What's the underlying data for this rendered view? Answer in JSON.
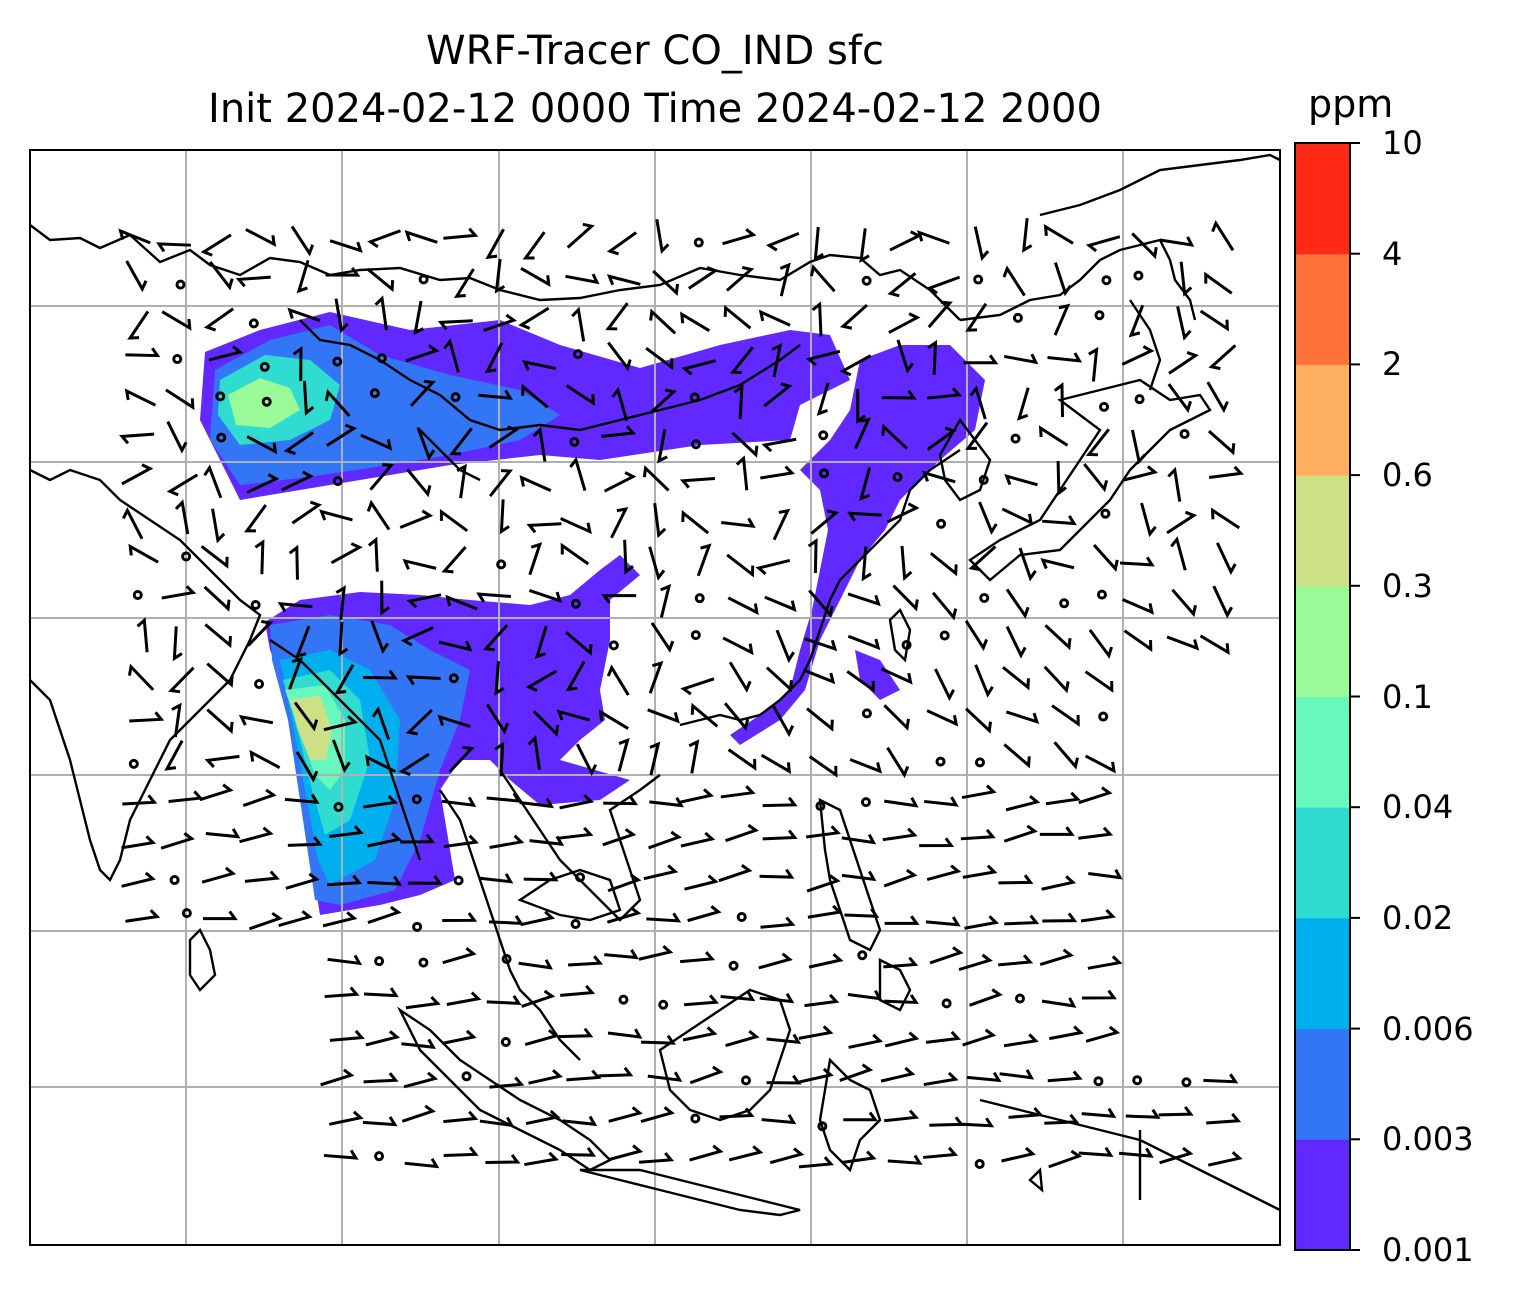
{
  "title": {
    "line1": "WRF-Tracer CO_IND sfc",
    "line2": "Init 2024-02-12 0000 Time 2024-02-12 2000"
  },
  "colorbar": {
    "unit": "ppm",
    "ticks": [
      "0.001",
      "0.003",
      "0.006",
      "0.02",
      "0.04",
      "0.1",
      "0.3",
      "0.6",
      "2",
      "4",
      "10"
    ],
    "colors": [
      "#6128ff",
      "#3276f6",
      "#00b0ee",
      "#2fdccf",
      "#68f8be",
      "#99fa97",
      "#cde085",
      "#fdae5e",
      "#ff7239",
      "#ff2a16"
    ]
  },
  "map": {
    "grid": "on",
    "plume_regions": [
      "north",
      "central",
      "east",
      "south"
    ],
    "wind_barbs": "on"
  },
  "colors": {
    "frame": "#000000",
    "gridline": "#b0b0b0",
    "coastline": "#000000"
  }
}
